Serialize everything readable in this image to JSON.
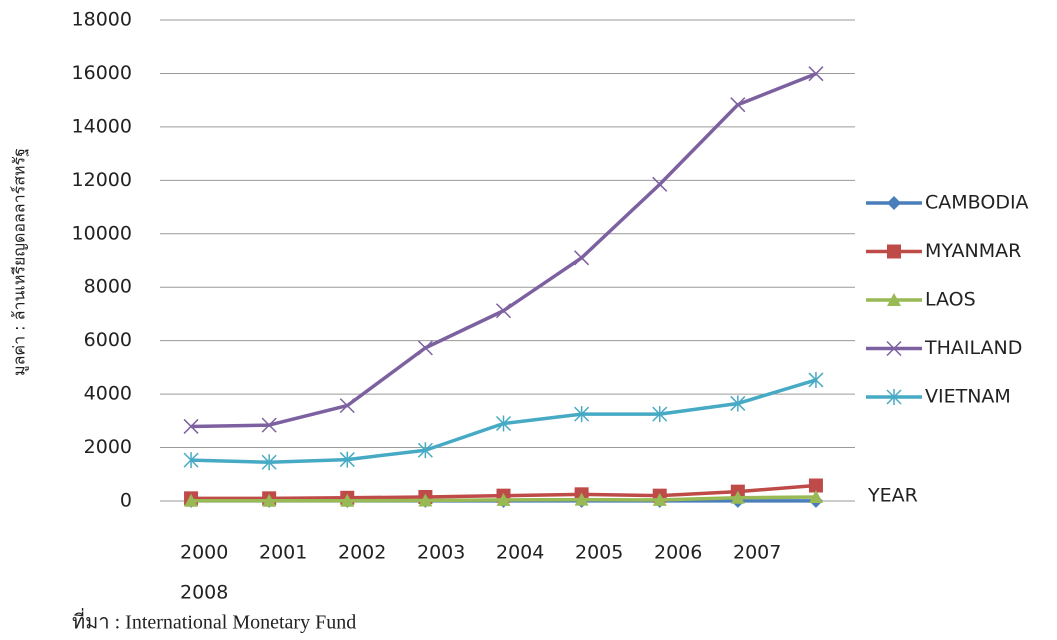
{
  "chart_data": {
    "type": "line",
    "y_label": "มูลค่า : ล้านเหรียญดอลลาร์สหรัฐ",
    "x_label": "YEAR",
    "source": "ที่มา : International  Monetary Fund",
    "categories": [
      "2000",
      "2001",
      "2002",
      "2003",
      "2004",
      "2005",
      "2006",
      "2007",
      "2008"
    ],
    "ylim": [
      0,
      18000
    ],
    "yticks": [
      0,
      2000,
      4000,
      6000,
      8000,
      10000,
      12000,
      14000,
      16000,
      18000
    ],
    "grid": true,
    "legend": "right",
    "series": [
      {
        "name": "CAMBODIA",
        "color": "#4a7ebb",
        "marker": "diamond",
        "values": [
          5,
          5,
          5,
          5,
          5,
          5,
          5,
          5,
          5
        ]
      },
      {
        "name": "MYANMAR",
        "color": "#be4b48",
        "marker": "square",
        "values": [
          100,
          100,
          120,
          150,
          200,
          250,
          200,
          350,
          580
        ]
      },
      {
        "name": "LAOS",
        "color": "#98b954",
        "marker": "triangle",
        "values": [
          10,
          10,
          10,
          20,
          40,
          50,
          40,
          120,
          150
        ]
      },
      {
        "name": "THAILAND",
        "color": "#7d60a0",
        "marker": "x",
        "values": [
          2790,
          2840,
          3570,
          5730,
          7120,
          9100,
          11850,
          14830,
          15990
        ]
      },
      {
        "name": "VIETNAM",
        "color": "#46aac5",
        "marker": "star",
        "values": [
          1530,
          1450,
          1550,
          1900,
          2900,
          3250,
          3250,
          3650,
          4530
        ]
      }
    ]
  }
}
